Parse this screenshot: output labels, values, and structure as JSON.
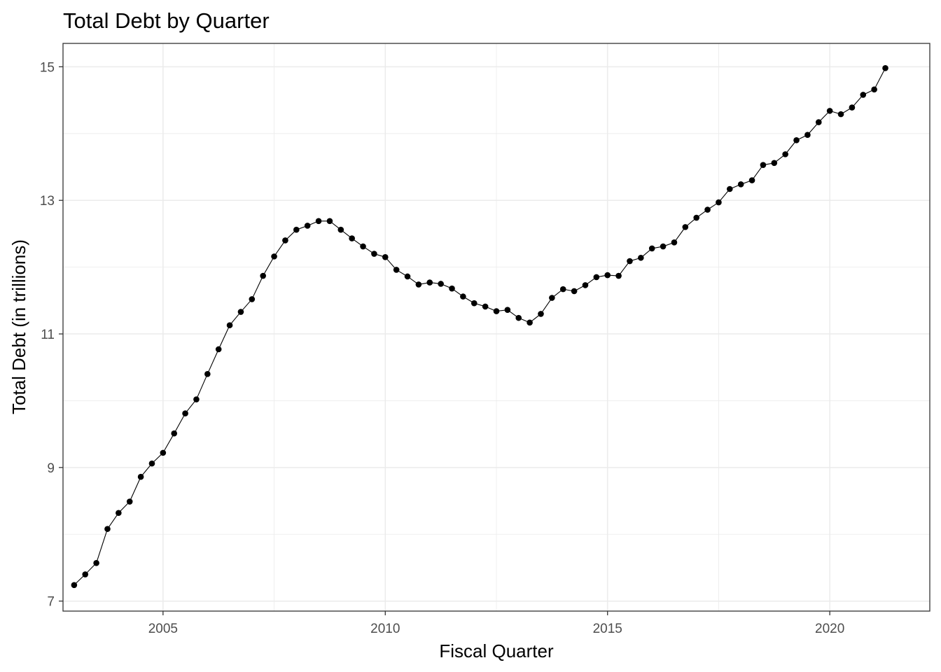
{
  "chart_data": {
    "type": "line",
    "title": "Total Debt by Quarter",
    "xlabel": "Fiscal Quarter",
    "ylabel": "Total Debt (in trillions)",
    "xlim": [
      2002.75,
      2022.25
    ],
    "ylim": [
      6.85,
      15.35
    ],
    "x_ticks": [
      2005,
      2010,
      2015,
      2020
    ],
    "x_tick_labels": [
      "2005",
      "2010",
      "2015",
      "2020"
    ],
    "x_minor_ticks": [
      2002.5,
      2007.5,
      2012.5,
      2017.5,
      2022.5
    ],
    "y_ticks": [
      7,
      9,
      11,
      13,
      15
    ],
    "y_tick_labels": [
      "7",
      "9",
      "11",
      "13",
      "15"
    ],
    "y_minor_ticks": [
      8,
      10,
      12,
      14
    ],
    "grid": true,
    "legend": "none",
    "colors": {
      "line": "#000000",
      "point": "#000000",
      "grid": "#ebebeb",
      "panel_border": "#333333",
      "background": "#ffffff"
    },
    "series": [
      {
        "x": [
          2003.0,
          2003.25,
          2003.5,
          2003.75,
          2004.0,
          2004.25,
          2004.5,
          2004.75,
          2005.0,
          2005.25,
          2005.5,
          2005.75,
          2006.0,
          2006.25,
          2006.5,
          2006.75,
          2007.0,
          2007.25,
          2007.5,
          2007.75,
          2008.0,
          2008.25,
          2008.5,
          2008.75,
          2009.0,
          2009.25,
          2009.5,
          2009.75,
          2010.0,
          2010.25,
          2010.5,
          2010.75,
          2011.0,
          2011.25,
          2011.5,
          2011.75,
          2012.0,
          2012.25,
          2012.5,
          2012.75,
          2013.0,
          2013.25,
          2013.5,
          2013.75,
          2014.0,
          2014.25,
          2014.5,
          2014.75,
          2015.0,
          2015.25,
          2015.5,
          2015.75,
          2016.0,
          2016.25,
          2016.5,
          2016.75,
          2017.0,
          2017.25,
          2017.5,
          2017.75,
          2018.0,
          2018.25,
          2018.5,
          2018.75,
          2019.0,
          2019.25,
          2019.5,
          2019.75,
          2020.0,
          2020.25,
          2020.5,
          2020.75,
          2021.0,
          2021.25
        ],
        "y": [
          7.24,
          7.4,
          7.57,
          8.08,
          8.32,
          8.49,
          8.86,
          9.06,
          9.22,
          9.51,
          9.81,
          10.02,
          10.4,
          10.77,
          11.13,
          11.33,
          11.52,
          11.87,
          12.16,
          12.4,
          12.56,
          12.62,
          12.69,
          12.69,
          12.56,
          12.43,
          12.31,
          12.2,
          12.15,
          11.96,
          11.86,
          11.74,
          11.77,
          11.75,
          11.68,
          11.56,
          11.46,
          11.41,
          11.34,
          11.36,
          11.24,
          11.17,
          11.3,
          11.54,
          11.67,
          11.64,
          11.73,
          11.85,
          11.88,
          11.87,
          12.09,
          12.14,
          12.28,
          12.31,
          12.37,
          12.6,
          12.74,
          12.86,
          12.97,
          13.17,
          13.24,
          13.3,
          13.53,
          13.56,
          13.69,
          13.9,
          13.98,
          14.17,
          14.34,
          14.29,
          14.39,
          14.58,
          14.66,
          14.98
        ]
      }
    ]
  }
}
